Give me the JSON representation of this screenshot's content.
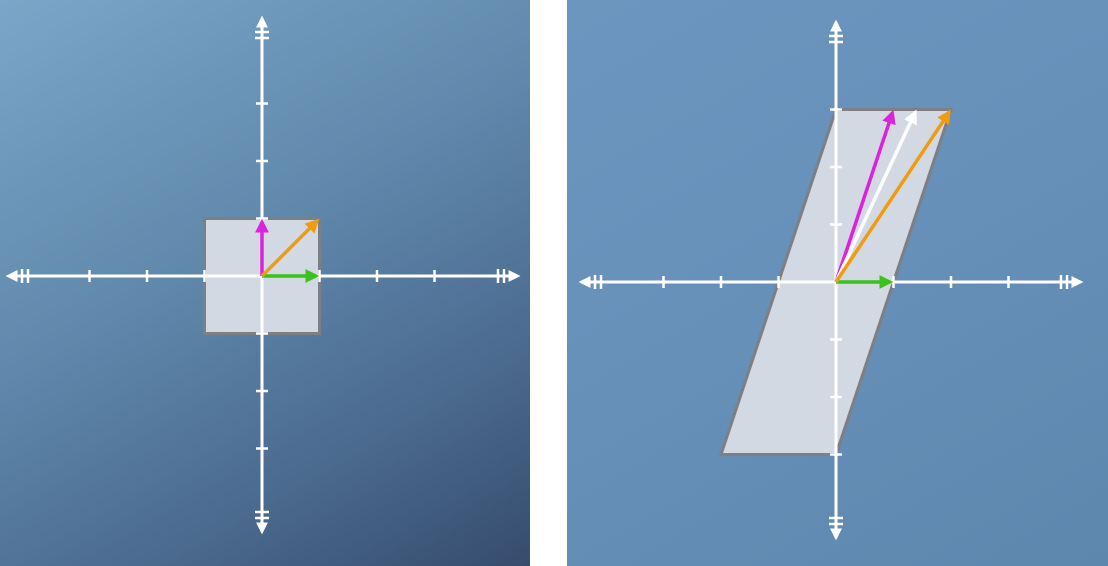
{
  "colors": {
    "axis": "#ffffff",
    "shape_fill": "#d3d9e3",
    "shape_stroke": "#7c7f86",
    "vector_i": "#39c11c",
    "vector_j": "#dd22dd",
    "vector_sum": "#ef9c10",
    "vector_white": "#ffffff"
  },
  "panels": [
    {
      "name": "before-transform",
      "axis_range": [
        -4.2,
        4.2
      ],
      "ticks": [
        -4,
        -3,
        -2,
        -1,
        1,
        2,
        3,
        4
      ],
      "shape": [
        [
          -1,
          -1
        ],
        [
          1,
          -1
        ],
        [
          1,
          1
        ],
        [
          -1,
          1
        ]
      ],
      "vectors": [
        {
          "name": "vector-i",
          "to": [
            1,
            0
          ],
          "color_key": "vector_i"
        },
        {
          "name": "vector-j",
          "to": [
            0,
            1
          ],
          "color_key": "vector_j"
        },
        {
          "name": "vector-sum",
          "to": [
            1,
            1
          ],
          "color_key": "vector_sum"
        }
      ]
    },
    {
      "name": "after-transform",
      "axis_range": [
        -4.2,
        4.2
      ],
      "ticks": [
        -4,
        -3,
        -2,
        -1,
        1,
        2,
        3,
        4
      ],
      "shape": [
        [
          -2,
          -3
        ],
        [
          0,
          -3
        ],
        [
          2,
          3
        ],
        [
          0,
          3
        ]
      ],
      "vectors": [
        {
          "name": "vector-i",
          "to": [
            1,
            0
          ],
          "color_key": "vector_i"
        },
        {
          "name": "vector-j",
          "to": [
            1,
            3
          ],
          "color_key": "vector_j"
        },
        {
          "name": "vector-white",
          "to": [
            1.4,
            3
          ],
          "color_key": "vector_white"
        },
        {
          "name": "vector-sum",
          "to": [
            2,
            3
          ],
          "color_key": "vector_sum"
        }
      ]
    }
  ]
}
